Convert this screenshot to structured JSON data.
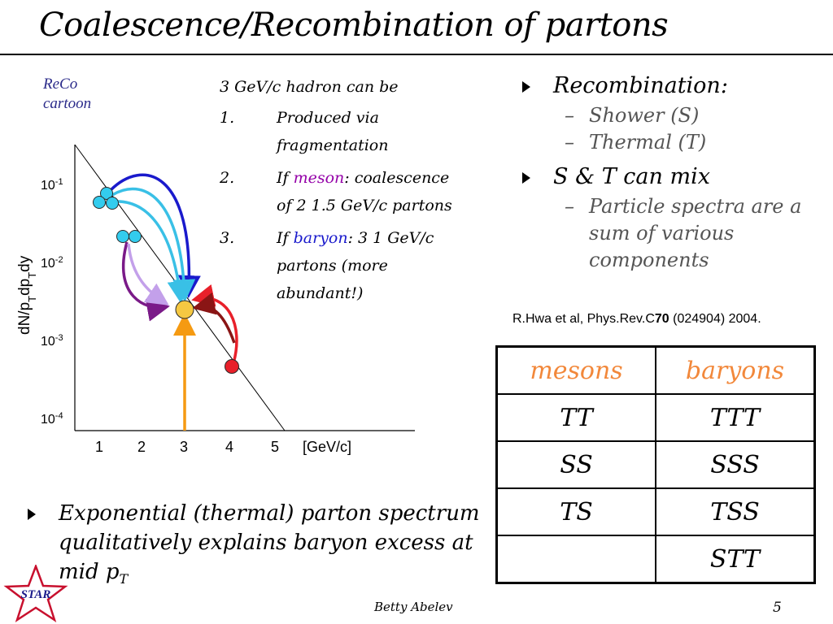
{
  "title": "Coalescence/Recombination of partons",
  "cartoon_label": {
    "line1": "ReCo",
    "line2": "cartoon"
  },
  "plot": {
    "ylabel": "dN/p<sub>T</sub>dp<sub>T</sub>dy",
    "yticks": [
      {
        "base": "10",
        "exp": "-1"
      },
      {
        "base": "10",
        "exp": "-2"
      },
      {
        "base": "10",
        "exp": "-3"
      },
      {
        "base": "10",
        "exp": "-4"
      }
    ],
    "xticks": [
      "1",
      "2",
      "3",
      "4",
      "5"
    ],
    "xunit": "[GeV/c]",
    "colors": {
      "mesons_dot": "#33ccee",
      "hadron_dot": "#f5c842",
      "shower_dot": "#e8202a",
      "arrow_orange": "#f59a12",
      "arrow_dark_blue": "#1a1acc",
      "arrow_light_blue": "#39c0e6",
      "arrow_violet": "#7a1a88",
      "arrow_lavender": "#c3a0ea",
      "arrow_red": "#e8202a",
      "arrow_dark_red": "#8a1515"
    }
  },
  "middle": {
    "head": "3 GeV/c hadron can be",
    "items": [
      {
        "num": "1.",
        "text": "Produced via fragmentation"
      },
      {
        "num": "2.",
        "pre": "If ",
        "highlight": "meson",
        "post": ": coalescence of 2 1.5 GeV/c partons"
      },
      {
        "num": "3.",
        "pre": "If ",
        "highlight": "baryon",
        "post": ": 3 1 GeV/c partons (more abundant!)"
      }
    ]
  },
  "right": {
    "bullet1": "Recombination:",
    "subs1": [
      "Shower (S)",
      "Thermal (T)"
    ],
    "bullet2": "S & T can mix",
    "subs2": [
      "Particle spectra are a sum of various components"
    ]
  },
  "reference": {
    "pre": "R.Hwa et al, Phys.Rev.C",
    "vol": "70",
    "post": " (024904) 2004."
  },
  "table": {
    "headers": [
      "mesons",
      "baryons"
    ],
    "rows": [
      [
        "TT",
        "TTT"
      ],
      [
        "SS",
        "SSS"
      ],
      [
        "TS",
        "TSS"
      ],
      [
        "",
        "STT"
      ]
    ]
  },
  "bottom": {
    "text": "Exponential (thermal) parton spectrum qualitatively explains baryon excess at mid p",
    "sub": "T"
  },
  "footer": {
    "logo_text": "STAR",
    "author": "Betty Abelev",
    "page": "5"
  }
}
